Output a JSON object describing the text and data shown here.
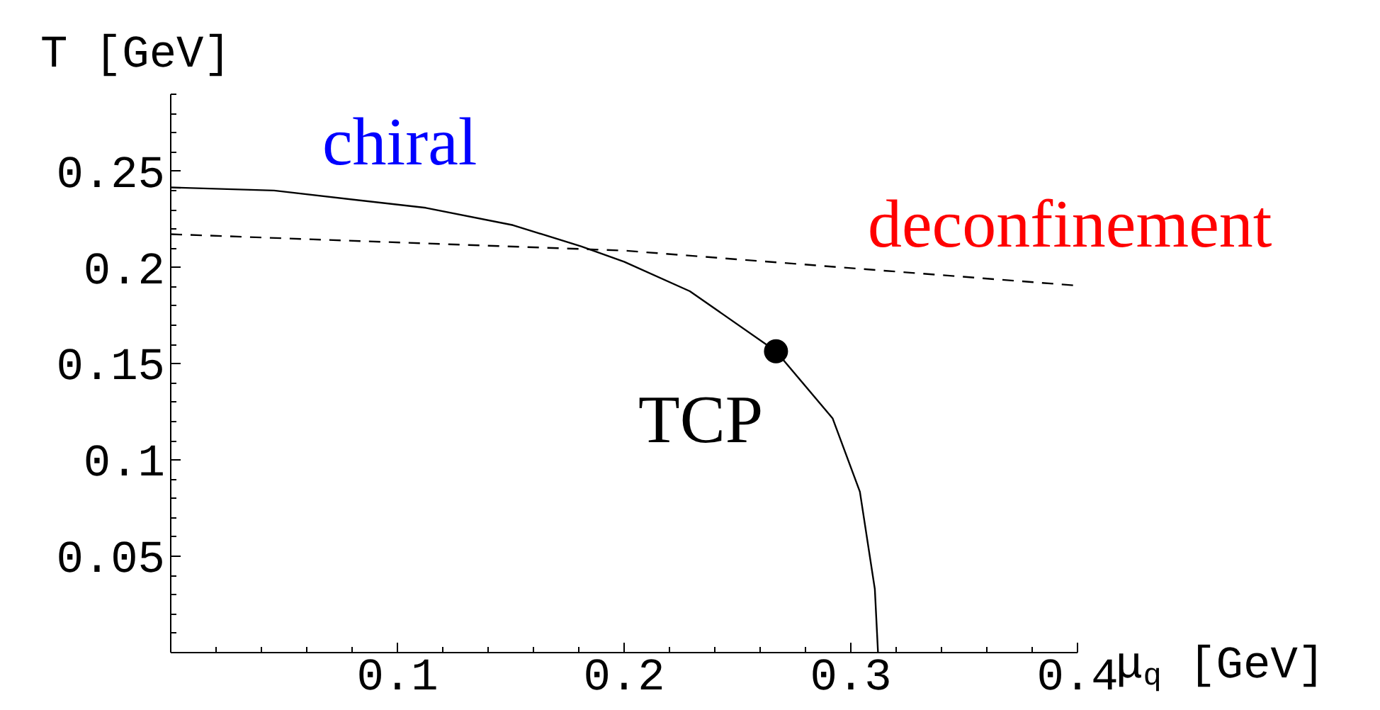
{
  "chart_data": {
    "type": "line",
    "xlabel": "μ$_{q}$ [GeV]",
    "ylabel": "T [GeV]",
    "xlim": [
      0,
      0.4
    ],
    "ylim": [
      0,
      0.29
    ],
    "xticks": [
      0.1,
      0.2,
      0.3,
      0.4
    ],
    "yticks": [
      0.05,
      0.1,
      0.15,
      0.2,
      0.25
    ],
    "grid": false,
    "series": [
      {
        "color": "#000000",
        "line_style": "solid",
        "x": [
          0,
          0.0456,
          0.1125,
          0.151,
          0.181,
          0.2,
          0.229,
          0.267,
          0.292,
          0.304,
          0.3106,
          0.312
        ],
        "values": [
          0.2416,
          0.24,
          0.231,
          0.222,
          0.211,
          0.203,
          0.1877,
          0.1565,
          0.1216,
          0.0836,
          0.033,
          0
        ]
      },
      {
        "color": "#000000",
        "line_style": "dashed",
        "x": [
          0,
          0.2,
          0.399
        ],
        "values": [
          0.2173,
          0.2088,
          0.1907
        ]
      },
      {
        "type": "scatter",
        "marker": "circle",
        "color": "#000000",
        "x": [
          0.267
        ],
        "values": [
          0.1565
        ]
      }
    ],
    "annotations": [
      "chiral",
      "deconfinement",
      "TCP"
    ]
  }
}
